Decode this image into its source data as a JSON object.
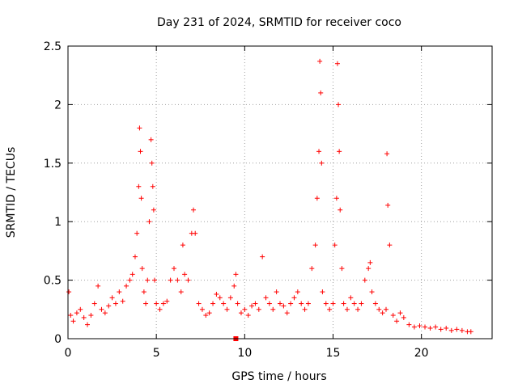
{
  "chart_data": {
    "type": "scatter",
    "title": "Day 231 of 2024, SRMTID for receiver coco",
    "xlabel": "GPS time / hours",
    "ylabel": "SRMTID / TECUs",
    "xlim": [
      0,
      24
    ],
    "ylim": [
      0,
      2.5
    ],
    "xticks": [
      0,
      5,
      10,
      15,
      20
    ],
    "xtick_labels": [
      "0",
      "5",
      "10",
      "15",
      "20"
    ],
    "yticks": [
      0,
      0.5,
      1,
      1.5,
      2,
      2.5
    ],
    "ytick_labels": [
      "0",
      "0.5",
      "1",
      "1.5",
      "2",
      "2.5"
    ],
    "grid": true,
    "marker": "+",
    "series_color": "#ff0000",
    "series": [
      {
        "name": "SRMTID",
        "x": [
          0.05,
          0.15,
          0.3,
          0.5,
          0.7,
          0.9,
          1.1,
          1.3,
          1.5,
          1.7,
          1.9,
          2.1,
          2.3,
          2.5,
          2.7,
          2.9,
          3.1,
          3.3,
          3.5,
          3.65,
          3.8,
          3.9,
          4.0,
          4.05,
          4.1,
          4.15,
          4.2,
          4.3,
          4.4,
          4.5,
          4.6,
          4.7,
          4.75,
          4.8,
          4.85,
          4.9,
          5.0,
          5.2,
          5.4,
          5.6,
          5.8,
          6.0,
          6.2,
          6.4,
          6.5,
          6.6,
          6.8,
          7.0,
          7.1,
          7.2,
          7.4,
          7.6,
          7.8,
          8.0,
          8.2,
          8.4,
          8.6,
          8.8,
          9.0,
          9.2,
          9.4,
          9.5,
          9.6,
          9.8,
          10.0,
          10.2,
          10.4,
          10.6,
          10.8,
          11.0,
          11.2,
          11.4,
          11.6,
          11.8,
          12.0,
          12.2,
          12.4,
          12.6,
          12.8,
          13.0,
          13.2,
          13.4,
          13.6,
          13.8,
          14.0,
          14.1,
          14.2,
          14.25,
          14.3,
          14.35,
          14.4,
          14.6,
          14.8,
          15.0,
          15.1,
          15.2,
          15.25,
          15.3,
          15.35,
          15.4,
          15.5,
          15.6,
          15.8,
          16.0,
          16.2,
          16.4,
          16.6,
          16.8,
          17.0,
          17.1,
          17.2,
          17.4,
          17.6,
          17.8,
          18.0,
          18.05,
          18.1,
          18.2,
          18.4,
          18.6,
          18.8,
          19.0,
          19.3,
          19.6,
          19.9,
          20.2,
          20.5,
          20.8,
          21.1,
          21.4,
          21.7,
          22.0,
          22.3,
          22.6,
          22.8
        ],
        "values": [
          0.4,
          0.2,
          0.15,
          0.22,
          0.25,
          0.18,
          0.12,
          0.2,
          0.3,
          0.45,
          0.25,
          0.22,
          0.28,
          0.35,
          0.3,
          0.4,
          0.32,
          0.45,
          0.5,
          0.55,
          0.7,
          0.9,
          1.3,
          1.8,
          1.6,
          1.2,
          0.6,
          0.4,
          0.3,
          0.5,
          1.0,
          1.7,
          1.5,
          1.3,
          1.1,
          0.5,
          0.3,
          0.25,
          0.3,
          0.32,
          0.5,
          0.6,
          0.5,
          0.4,
          0.8,
          0.55,
          0.5,
          0.9,
          1.1,
          0.9,
          0.3,
          0.25,
          0.2,
          0.22,
          0.3,
          0.38,
          0.35,
          0.3,
          0.25,
          0.35,
          0.45,
          0.55,
          0.3,
          0.22,
          0.25,
          0.2,
          0.28,
          0.3,
          0.25,
          0.7,
          0.35,
          0.3,
          0.25,
          0.4,
          0.3,
          0.28,
          0.22,
          0.3,
          0.35,
          0.4,
          0.3,
          0.25,
          0.3,
          0.6,
          0.8,
          1.2,
          1.6,
          2.37,
          2.1,
          1.5,
          0.4,
          0.3,
          0.25,
          0.3,
          0.8,
          1.2,
          2.35,
          2.0,
          1.6,
          1.1,
          0.6,
          0.3,
          0.25,
          0.35,
          0.3,
          0.25,
          0.3,
          0.5,
          0.6,
          0.65,
          0.4,
          0.3,
          0.25,
          0.22,
          0.25,
          1.58,
          1.14,
          0.8,
          0.2,
          0.15,
          0.22,
          0.18,
          0.12,
          0.1,
          0.11,
          0.1,
          0.09,
          0.1,
          0.08,
          0.09,
          0.07,
          0.08,
          0.07,
          0.06,
          0.06
        ]
      },
      {
        "name": "marker-square",
        "x": [
          9.5
        ],
        "values": [
          0.0
        ]
      }
    ]
  }
}
